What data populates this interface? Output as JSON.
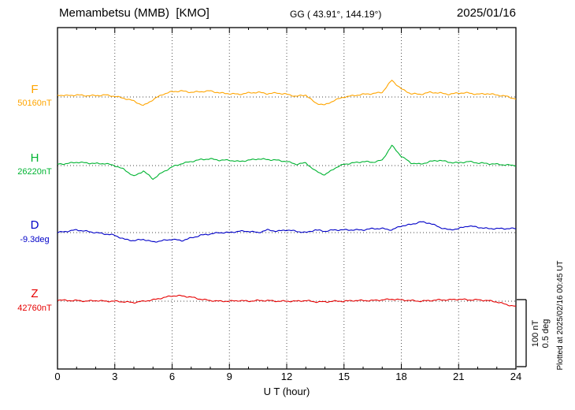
{
  "header": {
    "station_title": "Memambetsu (MMB)  [KMO]",
    "gg_coords": "GG ( 43.91°, 144.19°)",
    "date": "2025/01/16"
  },
  "footer": {
    "plotted_at": "Plotted at 2025/02/16 00:45 UT"
  },
  "scale_bar": {
    "line1": "100 nT",
    "line2": "0.5 deg"
  },
  "chart_data": {
    "type": "line",
    "title": "Memambetsu (MMB)  [KMO]",
    "xlabel": "U T (hour)",
    "x_range": [
      0,
      24
    ],
    "x_tick_labels": [
      "0",
      "3",
      "6",
      "9",
      "12",
      "15",
      "18",
      "21",
      "24"
    ],
    "x_step_hours": 0.5,
    "grid": "dotted vertical lines every 3 hours; dotted horizontal baseline per trace",
    "scale": {
      "nT_per_div": 100,
      "deg_per_div": 0.5
    },
    "series": [
      {
        "name": "F",
        "label": "F",
        "unit": "nT",
        "color": "#FFA500",
        "baseline_value": "50160nT",
        "offsets_from_baseline": [
          3,
          2,
          3,
          2,
          2,
          3,
          1,
          -2,
          -6,
          -13,
          -4,
          4,
          8,
          9,
          7,
          8,
          9,
          6,
          5,
          4,
          6,
          7,
          5,
          6,
          4,
          1,
          3,
          -9,
          -12,
          -5,
          0,
          2,
          4,
          5,
          7,
          25,
          12,
          5,
          4,
          7,
          6,
          4,
          6,
          6,
          4,
          5,
          3,
          1,
          -3
        ]
      },
      {
        "name": "H",
        "label": "H",
        "unit": "nT",
        "color": "#00B432",
        "baseline_value": "26220nT",
        "offsets_from_baseline": [
          2,
          3,
          5,
          4,
          3,
          3,
          0,
          -6,
          -16,
          -8,
          -20,
          -10,
          -2,
          3,
          6,
          9,
          10,
          8,
          8,
          6,
          8,
          10,
          9,
          8,
          6,
          2,
          4,
          -8,
          -14,
          -4,
          2,
          4,
          6,
          5,
          8,
          30,
          14,
          4,
          2,
          6,
          8,
          5,
          4,
          6,
          4,
          3,
          2,
          1,
          0
        ]
      },
      {
        "name": "D",
        "label": "D",
        "unit": "deg",
        "color": "#0000C8",
        "baseline_value": "-9.3deg",
        "offsets_from_baseline": [
          0,
          0.01,
          0.02,
          0.01,
          0,
          -0.01,
          -0.02,
          -0.05,
          -0.06,
          -0.05,
          -0.07,
          -0.06,
          -0.05,
          -0.06,
          -0.04,
          -0.02,
          -0.01,
          0,
          0,
          0.01,
          0.01,
          0,
          0.02,
          0.01,
          0.02,
          0.01,
          0,
          0.02,
          0.01,
          0.02,
          0.02,
          0.02,
          0.02,
          0.03,
          0.03,
          0.02,
          0.05,
          0.06,
          0.08,
          0.07,
          0.04,
          0.02,
          0.03,
          0.05,
          0.04,
          0.03,
          0.03,
          0.03,
          0.03
        ]
      },
      {
        "name": "Z",
        "label": "Z",
        "unit": "nT",
        "color": "#E60000",
        "baseline_value": "42760nT",
        "offsets_from_baseline": [
          2,
          1,
          1,
          0,
          1,
          0,
          0,
          -1,
          -2,
          0,
          2,
          5,
          8,
          8,
          6,
          3,
          1,
          0,
          0,
          1,
          0,
          1,
          1,
          0,
          0,
          0,
          1,
          -1,
          -1,
          0,
          0,
          1,
          1,
          1,
          2,
          3,
          2,
          1,
          0,
          1,
          2,
          2,
          3,
          2,
          2,
          1,
          -1,
          -5,
          -8
        ]
      }
    ]
  }
}
